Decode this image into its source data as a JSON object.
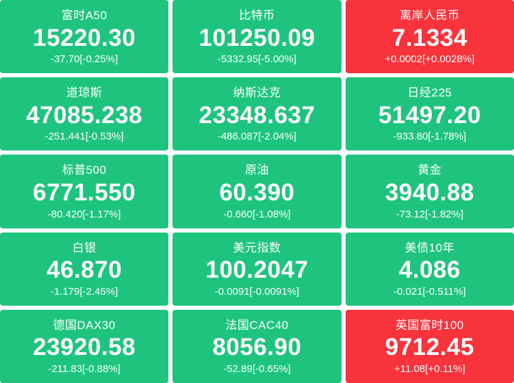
{
  "colors": {
    "down_green": "#1ec47e",
    "up_red": "#f8333c",
    "gap_background": "#ffffff",
    "text": "#ffffff"
  },
  "board": {
    "columns": 3,
    "rows": 5
  },
  "tiles": [
    {
      "name": "富时A50",
      "price": "15220.30",
      "change": "-37.70[-0.25%]",
      "trend": "down"
    },
    {
      "name": "比特币",
      "price": "101250.09",
      "change": "-5332.95[-5.00%]",
      "trend": "down"
    },
    {
      "name": "离岸人民币",
      "price": "7.1334",
      "change": "+0.0002[+0.0028%]",
      "trend": "up"
    },
    {
      "name": "道琼斯",
      "price": "47085.238",
      "change": "-251.441[-0.53%]",
      "trend": "down"
    },
    {
      "name": "纳斯达克",
      "price": "23348.637",
      "change": "-486.087[-2.04%]",
      "trend": "down"
    },
    {
      "name": "日经225",
      "price": "51497.20",
      "change": "-933.80[-1.78%]",
      "trend": "down"
    },
    {
      "name": "标普500",
      "price": "6771.550",
      "change": "-80.420[-1.17%]",
      "trend": "down"
    },
    {
      "name": "原油",
      "price": "60.390",
      "change": "-0.660[-1.08%]",
      "trend": "down"
    },
    {
      "name": "黄金",
      "price": "3940.88",
      "change": "-73.12[-1.82%]",
      "trend": "down"
    },
    {
      "name": "白银",
      "price": "46.870",
      "change": "-1.179[-2.45%]",
      "trend": "down"
    },
    {
      "name": "美元指数",
      "price": "100.2047",
      "change": "-0.0091[-0.0091%]",
      "trend": "down"
    },
    {
      "name": "美债10年",
      "price": "4.086",
      "change": "-0.021[-0.511%]",
      "trend": "down"
    },
    {
      "name": "德国DAX30",
      "price": "23920.58",
      "change": "-211.83[-0.88%]",
      "trend": "down"
    },
    {
      "name": "法国CAC40",
      "price": "8056.90",
      "change": "-52.89[-0.65%]",
      "trend": "down"
    },
    {
      "name": "英国富时100",
      "price": "9712.45",
      "change": "+11.08[+0.11%]",
      "trend": "up"
    }
  ]
}
